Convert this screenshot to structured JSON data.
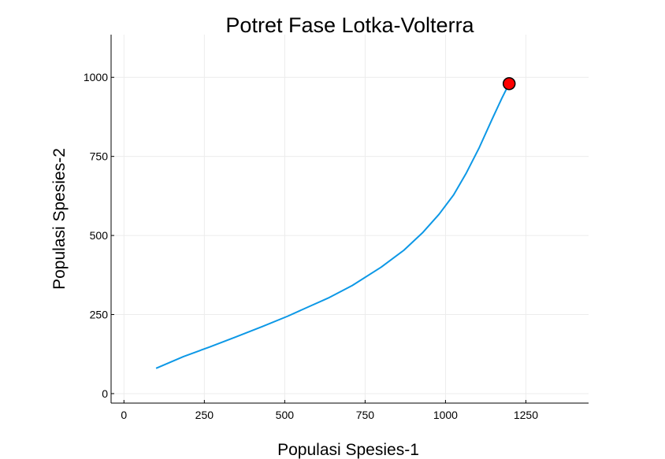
{
  "chart_data": {
    "type": "line",
    "title": "Potret Fase Lotka-Volterra",
    "xlabel": "Populasi Spesies-1",
    "ylabel": "Populasi Spesies-2",
    "xlim": [
      -40,
      1445
    ],
    "ylim": [
      -30,
      1135
    ],
    "xticks": [
      0,
      250,
      500,
      750,
      1000,
      1250
    ],
    "yticks": [
      0,
      250,
      500,
      750,
      1000
    ],
    "grid": true,
    "series": [
      {
        "color": "#0d98e6",
        "x": [
          100,
          185,
          265,
          345,
          430,
          510,
          575,
          635,
          710,
          800,
          870,
          930,
          980,
          1025,
          1065,
          1105,
          1145,
          1175,
          1198
        ],
        "y": [
          80,
          117,
          147,
          178,
          212,
          245,
          275,
          302,
          342,
          400,
          453,
          510,
          567,
          628,
          698,
          778,
          868,
          933,
          980
        ]
      }
    ],
    "marker": {
      "x": 1198,
      "y": 980,
      "color": "#ff0000",
      "edge_color": "#000000"
    }
  }
}
